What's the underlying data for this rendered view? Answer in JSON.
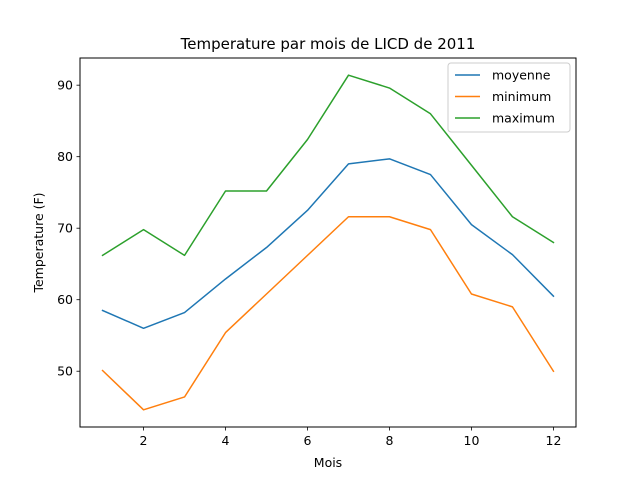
{
  "chart_data": {
    "type": "line",
    "title": "Temperature par mois de LICD de 2011",
    "xlabel": "Mois",
    "ylabel": "Temperature (F)",
    "x": [
      1,
      2,
      3,
      4,
      5,
      6,
      7,
      8,
      9,
      10,
      11,
      12
    ],
    "xlim": [
      0.45,
      12.55
    ],
    "ylim": [
      42.2,
      93.8
    ],
    "xticks": [
      2,
      4,
      6,
      8,
      10,
      12
    ],
    "yticks": [
      50,
      60,
      70,
      80,
      90
    ],
    "grid": false,
    "legend_position": "top-right",
    "series": [
      {
        "name": "moyenne",
        "color": "#1f77b4",
        "values": [
          58.5,
          56.0,
          58.2,
          62.9,
          67.3,
          72.5,
          79.0,
          79.7,
          77.5,
          70.5,
          66.3,
          60.5
        ]
      },
      {
        "name": "minimum",
        "color": "#ff7f0e",
        "values": [
          50.1,
          44.6,
          46.4,
          55.4,
          60.8,
          66.2,
          71.6,
          71.6,
          69.8,
          60.8,
          59.0,
          50.0
        ]
      },
      {
        "name": "maximum",
        "color": "#2ca02c",
        "values": [
          66.2,
          69.8,
          66.2,
          75.2,
          75.2,
          82.4,
          91.4,
          89.6,
          86.0,
          78.8,
          71.6,
          68.0
        ]
      }
    ]
  }
}
